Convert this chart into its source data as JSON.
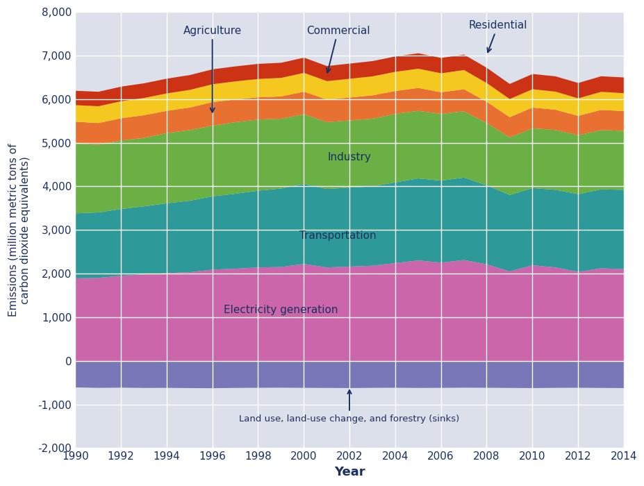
{
  "years": [
    1990,
    1991,
    1992,
    1993,
    1994,
    1995,
    1996,
    1997,
    1998,
    1999,
    2000,
    2001,
    2002,
    2003,
    2004,
    2005,
    2006,
    2007,
    2008,
    2009,
    2010,
    2011,
    2012,
    2013,
    2014
  ],
  "land_use": [
    -600,
    -610,
    -605,
    -612,
    -610,
    -615,
    -618,
    -612,
    -608,
    -606,
    -610,
    -612,
    -615,
    -610,
    -608,
    -612,
    -610,
    -606,
    -608,
    -612,
    -615,
    -610,
    -608,
    -612,
    -615
  ],
  "electricity": [
    1900,
    1910,
    1960,
    1990,
    2020,
    2040,
    2100,
    2120,
    2150,
    2160,
    2230,
    2150,
    2170,
    2190,
    2250,
    2310,
    2260,
    2320,
    2220,
    2060,
    2200,
    2150,
    2050,
    2130,
    2110
  ],
  "transportation": [
    1490,
    1500,
    1530,
    1560,
    1600,
    1640,
    1680,
    1720,
    1760,
    1800,
    1830,
    1800,
    1810,
    1820,
    1850,
    1880,
    1880,
    1890,
    1810,
    1750,
    1770,
    1780,
    1780,
    1810,
    1820
  ],
  "industry": [
    1600,
    1550,
    1570,
    1570,
    1610,
    1620,
    1620,
    1640,
    1630,
    1600,
    1600,
    1530,
    1540,
    1550,
    1570,
    1550,
    1530,
    1520,
    1430,
    1320,
    1370,
    1370,
    1350,
    1360,
    1350
  ],
  "residential": [
    500,
    500,
    510,
    520,
    510,
    515,
    540,
    520,
    510,
    510,
    520,
    515,
    525,
    535,
    525,
    525,
    495,
    505,
    485,
    465,
    475,
    465,
    445,
    460,
    455
  ],
  "commercial": [
    380,
    385,
    390,
    395,
    400,
    405,
    410,
    415,
    420,
    425,
    430,
    425,
    430,
    435,
    440,
    440,
    435,
    440,
    430,
    415,
    420,
    415,
    400,
    415,
    410
  ],
  "agriculture": [
    330,
    332,
    335,
    336,
    338,
    340,
    342,
    344,
    346,
    347,
    349,
    346,
    348,
    350,
    352,
    354,
    352,
    354,
    350,
    346,
    349,
    351,
    353,
    357,
    360
  ],
  "colors": {
    "land_use": "#7878b8",
    "electricity": "#cc66aa",
    "transportation": "#2e9999",
    "industry": "#6ab045",
    "residential": "#e87030",
    "commercial": "#f5c820",
    "agriculture": "#cc3315"
  },
  "xlabel": "Year",
  "ylabel": "Emissions (million metric tons of\ncarbon dioxide equivalents)",
  "ylim": [
    -2000,
    8000
  ],
  "xlim": [
    1990,
    2014
  ],
  "bg_color": "#dce0ea",
  "plot_bg": "#dce0ea",
  "label_color": "#1a3060"
}
